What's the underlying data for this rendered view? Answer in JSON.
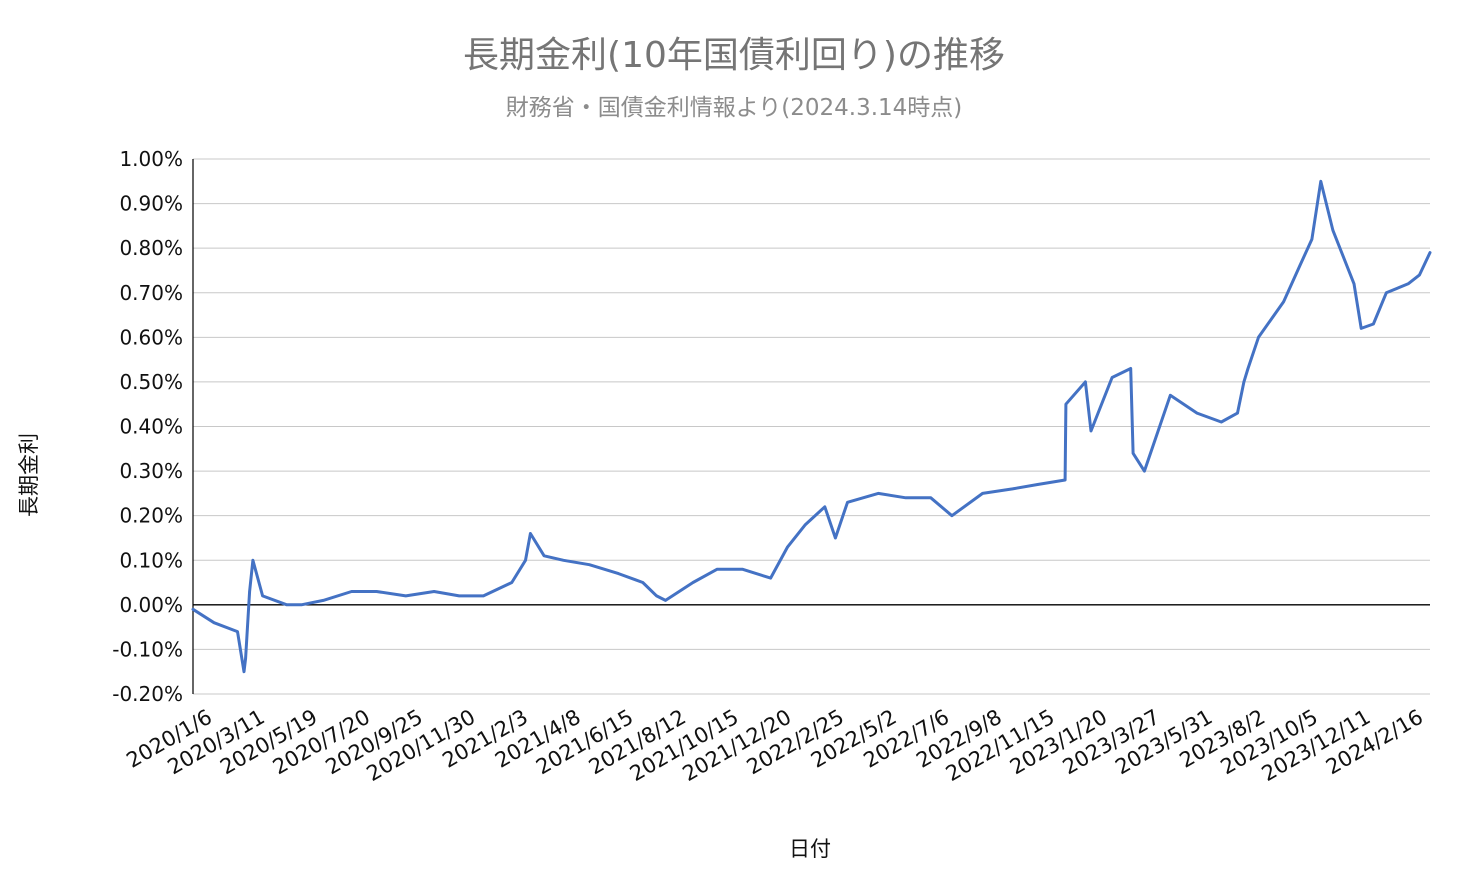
{
  "chart_data": {
    "type": "line",
    "title": "長期金利(10年国債利回り)の推移",
    "subtitle": "財務省・国債金利情報より(2024.3.14時点)",
    "xlabel": "日付",
    "ylabel": "長期金利",
    "ylim": [
      -0.2,
      1.0
    ],
    "y_ticks": [
      "1.00%",
      "0.90%",
      "0.80%",
      "0.70%",
      "0.60%",
      "0.50%",
      "0.40%",
      "0.30%",
      "0.20%",
      "0.10%",
      "0.00%",
      "-0.10%",
      "-0.20%"
    ],
    "x_ticks": [
      "2020/1/6",
      "2020/3/11",
      "2020/5/19",
      "2020/7/20",
      "2020/9/25",
      "2020/11/30",
      "2021/2/3",
      "2021/4/8",
      "2021/6/15",
      "2021/8/12",
      "2021/10/15",
      "2021/12/20",
      "2022/2/25",
      "2022/5/2",
      "2022/7/6",
      "2022/9/8",
      "2022/11/15",
      "2023/1/20",
      "2023/3/27",
      "2023/5/31",
      "2023/8/2",
      "2023/10/5",
      "2023/12/11",
      "2024/2/16"
    ],
    "grid": true,
    "legend": "none",
    "series": [
      {
        "color": "#4472c4",
        "x": [
          "2020/1/6",
          "2020/2/1",
          "2020/3/1",
          "2020/3/9",
          "2020/3/11",
          "2020/3/16",
          "2020/3/20",
          "2020/4/1",
          "2020/5/1",
          "2020/5/19",
          "2020/6/15",
          "2020/7/20",
          "2020/8/20",
          "2020/9/25",
          "2020/10/30",
          "2020/11/30",
          "2020/12/30",
          "2021/2/3",
          "2021/2/20",
          "2021/2/26",
          "2021/3/15",
          "2021/4/8",
          "2021/5/10",
          "2021/6/15",
          "2021/7/15",
          "2021/8/1",
          "2021/8/12",
          "2021/9/15",
          "2021/10/15",
          "2021/11/15",
          "2021/12/20",
          "2022/1/10",
          "2022/2/1",
          "2022/2/25",
          "2022/3/10",
          "2022/3/25",
          "2022/5/2",
          "2022/6/5",
          "2022/7/6",
          "2022/8/1",
          "2022/9/8",
          "2022/10/15",
          "2022/11/15",
          "2022/12/19",
          "2022/12/20",
          "2023/1/13",
          "2023/1/20",
          "2023/2/15",
          "2023/3/10",
          "2023/3/13",
          "2023/3/27",
          "2023/4/28",
          "2023/5/31",
          "2023/6/30",
          "2023/7/20",
          "2023/7/28",
          "2023/8/2",
          "2023/8/15",
          "2023/9/15",
          "2023/10/5",
          "2023/10/20",
          "2023/10/31",
          "2023/11/15",
          "2023/12/11",
          "2023/12/20",
          "2024/1/4",
          "2024/1/20",
          "2024/2/16",
          "2024/3/1",
          "2024/3/14"
        ],
        "values": [
          -0.01,
          -0.04,
          -0.06,
          -0.15,
          -0.12,
          0.03,
          0.1,
          0.02,
          0.0,
          0.0,
          0.01,
          0.03,
          0.03,
          0.02,
          0.03,
          0.02,
          0.02,
          0.05,
          0.1,
          0.16,
          0.11,
          0.1,
          0.09,
          0.07,
          0.05,
          0.02,
          0.01,
          0.05,
          0.08,
          0.08,
          0.06,
          0.13,
          0.18,
          0.22,
          0.15,
          0.23,
          0.25,
          0.24,
          0.24,
          0.2,
          0.25,
          0.26,
          0.27,
          0.28,
          0.45,
          0.5,
          0.39,
          0.51,
          0.53,
          0.34,
          0.3,
          0.47,
          0.43,
          0.41,
          0.43,
          0.5,
          0.53,
          0.6,
          0.68,
          0.76,
          0.82,
          0.95,
          0.84,
          0.72,
          0.62,
          0.63,
          0.7,
          0.72,
          0.74,
          0.79
        ]
      }
    ]
  }
}
